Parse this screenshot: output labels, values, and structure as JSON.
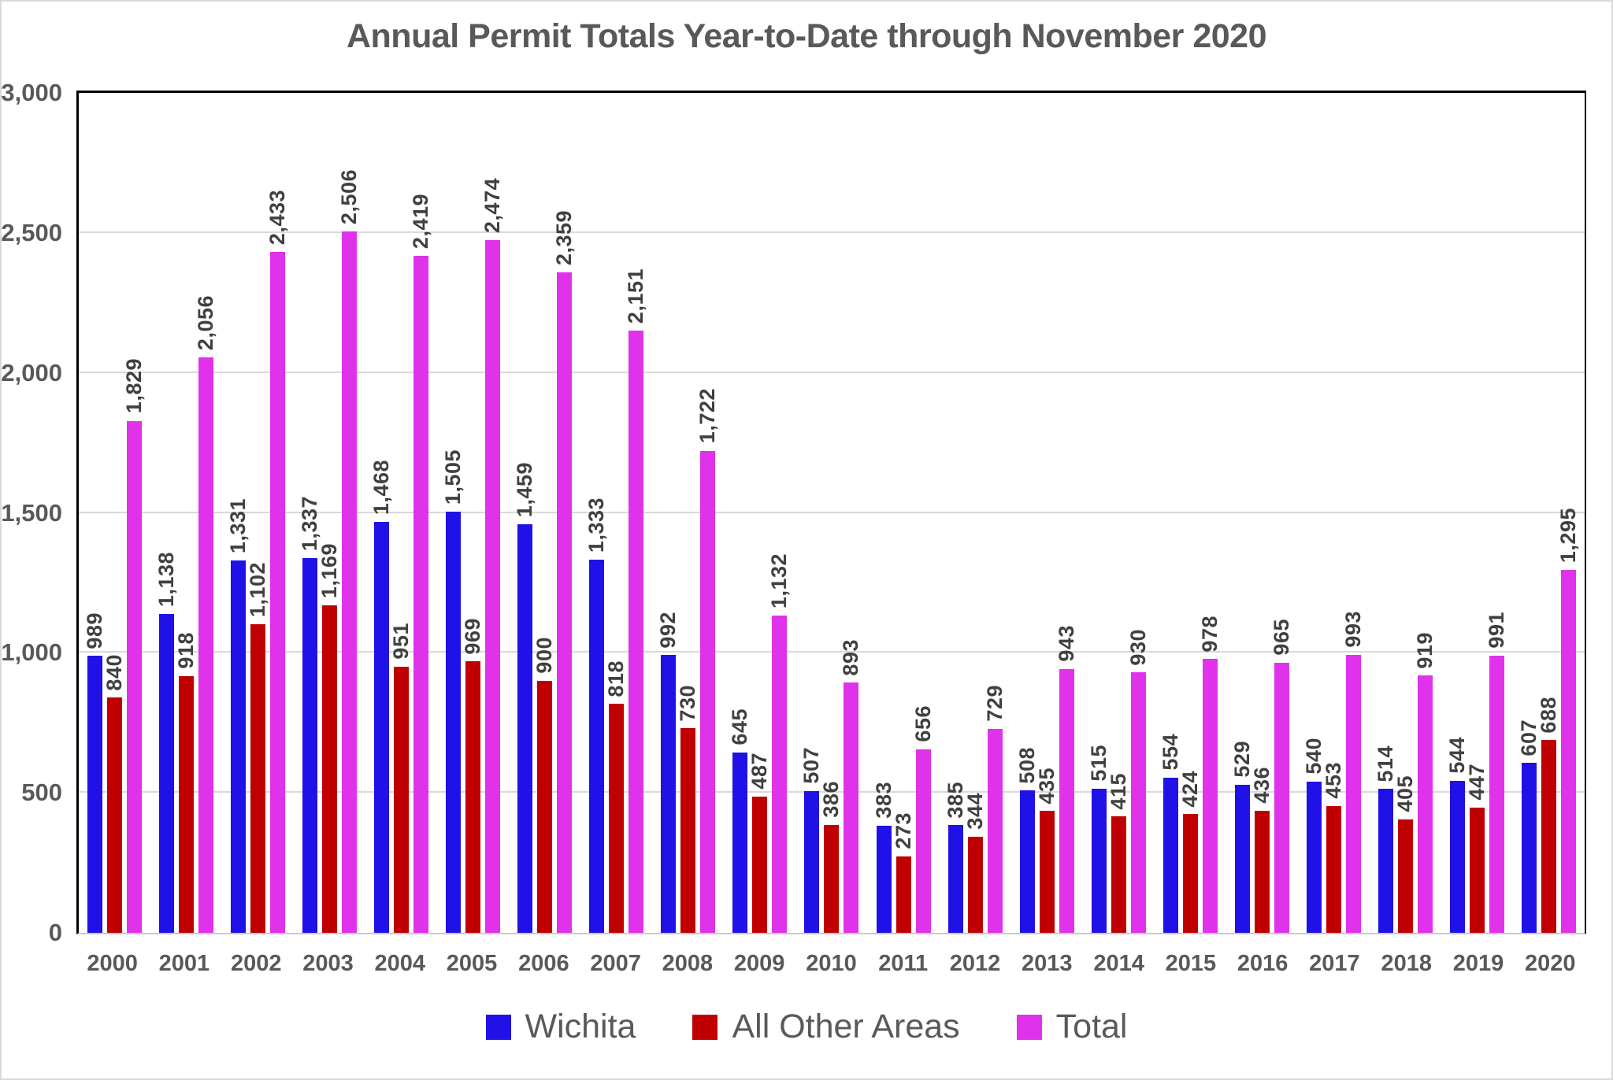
{
  "page": {
    "background": "#ffffff",
    "frame_border_color": "#d9d9d9"
  },
  "chart_data": {
    "type": "bar",
    "title": "Annual Permit Totals Year-to-Date through November 2020",
    "categories": [
      "2000",
      "2001",
      "2002",
      "2003",
      "2004",
      "2005",
      "2006",
      "2007",
      "2008",
      "2009",
      "2010",
      "2011",
      "2012",
      "2013",
      "2014",
      "2015",
      "2016",
      "2017",
      "2018",
      "2019",
      "2020"
    ],
    "series": [
      {
        "name": "Wichita",
        "color": "#2012e6",
        "values": [
          989,
          1138,
          1331,
          1337,
          1468,
          1505,
          1459,
          1333,
          992,
          645,
          507,
          383,
          385,
          508,
          515,
          554,
          529,
          540,
          514,
          544,
          607
        ]
      },
      {
        "name": "All Other Areas",
        "color": "#c00000",
        "values": [
          840,
          918,
          1102,
          1169,
          951,
          969,
          900,
          818,
          730,
          487,
          386,
          273,
          344,
          435,
          415,
          424,
          436,
          453,
          405,
          447,
          688
        ]
      },
      {
        "name": "Total",
        "color": "#e032ea",
        "values": [
          1829,
          2056,
          2433,
          2506,
          2419,
          2474,
          2359,
          2151,
          1722,
          1132,
          893,
          656,
          729,
          943,
          930,
          978,
          965,
          993,
          919,
          991,
          1295
        ]
      }
    ],
    "xlabel": "",
    "ylabel": "",
    "ylim": [
      0,
      3000
    ],
    "ytick_interval": 500,
    "ytick_labels": [
      "0",
      "500",
      "1,000",
      "1,500",
      "2,000",
      "2,500",
      "3,000"
    ],
    "grid": true,
    "gridline_color": "#d9d9d9",
    "value_labels": "rotated-90-above-bars",
    "value_label_color": "#404040",
    "axis_text_color": "#595959",
    "legend_position": "bottom"
  }
}
